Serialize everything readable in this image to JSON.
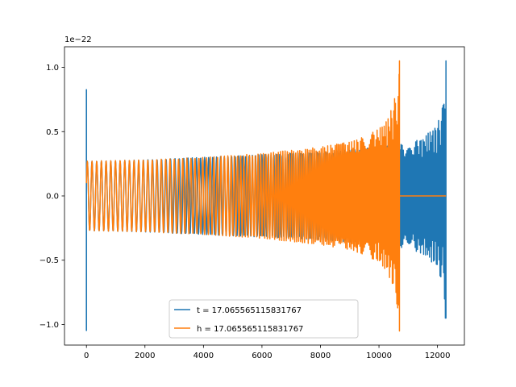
{
  "chart_data": {
    "type": "line",
    "title": "",
    "xlabel": "",
    "ylabel": "",
    "offset_text": "1e−22",
    "xlim": [
      -750,
      12920
    ],
    "ylim": [
      -1.16,
      1.16
    ],
    "xticks": [
      0,
      2000,
      4000,
      6000,
      8000,
      10000,
      12000
    ],
    "xtick_labels": [
      "0",
      "2000",
      "4000",
      "6000",
      "8000",
      "10000",
      "12000"
    ],
    "yticks": [
      -1.0,
      -0.5,
      0.0,
      0.5,
      1.0
    ],
    "ytick_labels": [
      "−1.0",
      "−0.5",
      "0.0",
      "0.5",
      "1.0"
    ],
    "grid": false,
    "legend": {
      "placement": "lower center"
    },
    "series": [
      {
        "name": "t = 17.065565115831767",
        "color": "#1f77b4",
        "spike_x": 0,
        "spike_range": [
          -1.05,
          0.83
        ],
        "x_start": 0,
        "x_end": 12290,
        "start_amplitude": 0.27,
        "peak_amplitude": 1.05,
        "neg_peak_amplitude": 0.95,
        "envelope_x": [
          0,
          2000,
          4000,
          6000,
          8000,
          10000,
          10700,
          11000,
          11500,
          12000,
          12200,
          12290
        ],
        "envelope_amp": [
          0.27,
          0.28,
          0.3,
          0.32,
          0.34,
          0.38,
          0.4,
          0.41,
          0.45,
          0.56,
          0.72,
          1.05
        ]
      },
      {
        "name": "h = 17.065565115831767",
        "color": "#ff7f0e",
        "x_start": 0,
        "x_end": 10700,
        "flat_to": 12290,
        "start_amplitude": 0.27,
        "peak_amplitude": 1.05,
        "neg_peak_amplitude": 1.05,
        "envelope_x": [
          0,
          2000,
          4000,
          6000,
          8000,
          9000,
          9500,
          10000,
          10300,
          10500,
          10620,
          10700
        ],
        "envelope_amp": [
          0.27,
          0.28,
          0.3,
          0.33,
          0.38,
          0.42,
          0.46,
          0.52,
          0.6,
          0.72,
          0.85,
          1.05
        ]
      }
    ]
  }
}
